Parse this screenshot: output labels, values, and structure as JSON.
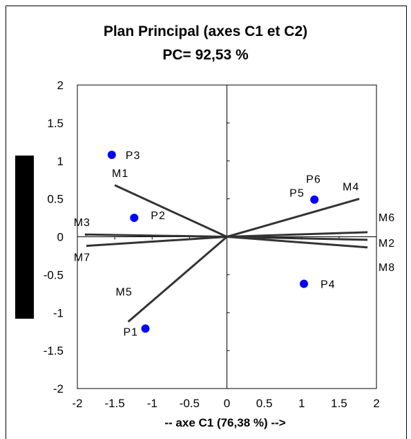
{
  "chart_data": {
    "type": "scatter",
    "title": "Plan Principal (axes C1 et C2)",
    "subtitle": "PC= 92,53 %",
    "xlabel": "-- axe C1 (76,38 %) -->",
    "ylabel": "",
    "xlim": [
      -2,
      2
    ],
    "ylim": [
      -2,
      2
    ],
    "xticks": [
      "-2",
      "-1.5",
      "-1",
      "-0.5",
      "0",
      "0.5",
      "1",
      "1.5",
      "2"
    ],
    "yticks": [
      "2",
      "1.5",
      "1",
      "0.5",
      "0",
      "-0.5",
      "-1",
      "-1.5",
      "-2"
    ],
    "point_color": "#0000ff",
    "vector_color": "#333333",
    "points": [
      {
        "label": "P3",
        "x": -1.54,
        "y": 1.08
      },
      {
        "label": "P2",
        "x": -1.24,
        "y": 0.25
      },
      {
        "label": "P1",
        "x": -1.09,
        "y": -1.21
      },
      {
        "label": "P5",
        "x": 1.17,
        "y": 0.49
      },
      {
        "label": "P6",
        "x": 1.17,
        "y": 0.49
      },
      {
        "label": "P4",
        "x": 1.03,
        "y": -0.62
      }
    ],
    "vectors": [
      {
        "label": "M1",
        "x": -1.5,
        "y": 0.68
      },
      {
        "label": "M3",
        "x": -1.9,
        "y": 0.03
      },
      {
        "label": "M7",
        "x": -1.88,
        "y": -0.12
      },
      {
        "label": "M5",
        "x": -1.32,
        "y": -1.12
      },
      {
        "label": "M4",
        "x": 1.77,
        "y": 0.5
      },
      {
        "label": "M6",
        "x": 1.88,
        "y": 0.06
      },
      {
        "label": "M2",
        "x": 1.88,
        "y": -0.04
      },
      {
        "label": "M8",
        "x": 1.88,
        "y": -0.14
      }
    ]
  }
}
